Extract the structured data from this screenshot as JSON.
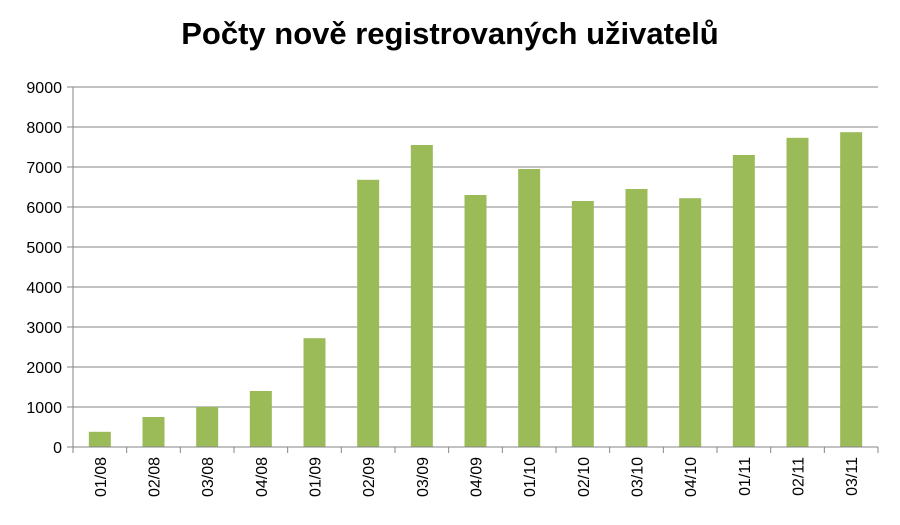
{
  "chart_data": {
    "type": "bar",
    "title": "Počty nově registrovaných uživatelů",
    "xlabel": "",
    "ylabel": "",
    "ylim": [
      0,
      9000
    ],
    "yticks": [
      0,
      1000,
      2000,
      3000,
      4000,
      5000,
      6000,
      7000,
      8000,
      9000
    ],
    "grid": true,
    "legend": "none",
    "bar_color": "#9bbb59",
    "categories": [
      "01/08",
      "02/08",
      "03/08",
      "04/08",
      "01/09",
      "02/09",
      "03/09",
      "04/09",
      "01/10",
      "02/10",
      "03/10",
      "04/10",
      "01/11",
      "02/11",
      "03/11"
    ],
    "values": [
      380,
      750,
      1000,
      1400,
      2720,
      6680,
      7550,
      6300,
      6950,
      6150,
      6450,
      6220,
      7300,
      7730,
      7870
    ]
  }
}
